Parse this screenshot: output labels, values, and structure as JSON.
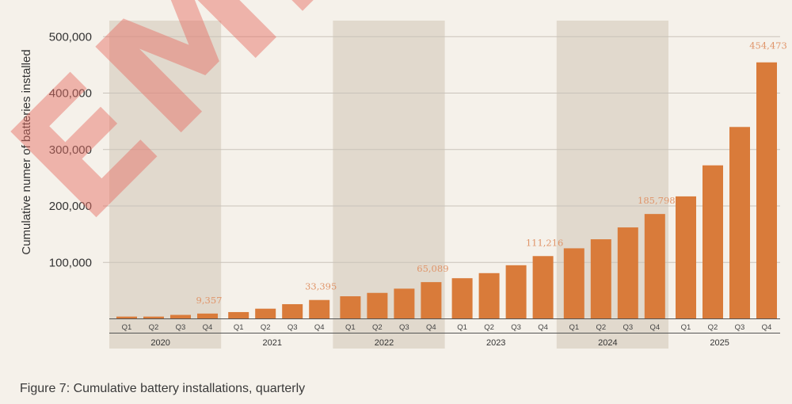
{
  "chart_data": {
    "type": "bar",
    "ylabel": "Cumulative numer of batteries installed",
    "ylim": [
      0,
      500000
    ],
    "yticks": [
      "100,000",
      "200,000",
      "300,000",
      "400,000",
      "500,000"
    ],
    "ytick_values": [
      100000,
      200000,
      300000,
      400000,
      500000
    ],
    "grid": true,
    "years": [
      "2020",
      "2021",
      "2022",
      "2023",
      "2024",
      "2025"
    ],
    "shaded_years": [
      "2020",
      "2022",
      "2024"
    ],
    "quarters": [
      "Q1",
      "Q2",
      "Q3",
      "Q4"
    ],
    "values": [
      [
        4000,
        4000,
        7000,
        9357
      ],
      [
        12000,
        18000,
        26000,
        33395
      ],
      [
        40000,
        46000,
        53500,
        65089
      ],
      [
        72000,
        81000,
        95000,
        111216
      ],
      [
        125000,
        141000,
        162000,
        185798
      ],
      [
        217000,
        272000,
        340000,
        454473
      ]
    ],
    "data_labels": [
      "9,357",
      "33,395",
      "65,089",
      "111,216",
      "185,798",
      "454,473"
    ],
    "bar_color": "#d97b3a",
    "label_color": "#e0956a",
    "shade_color": "#e1d9cd"
  },
  "caption": "Figure 7: Cumulative battery installations, quarterly",
  "watermark": "EMBER"
}
